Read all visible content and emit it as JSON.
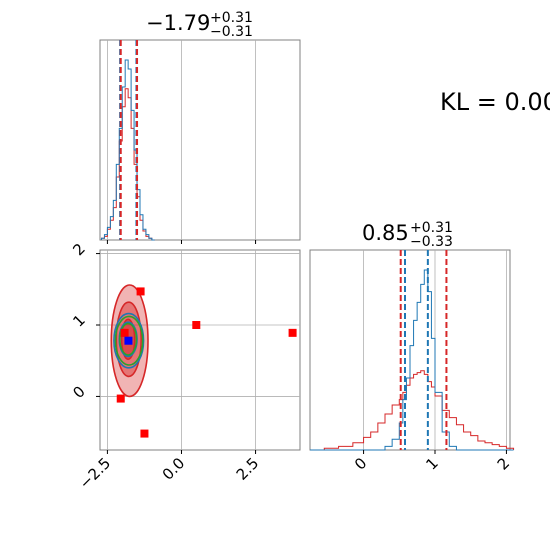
{
  "chart_data": {
    "type": "corner",
    "kl_text": "KL = 0.00",
    "params": [
      {
        "median": "−1.79",
        "plus": "+0.31",
        "minus": "−0.31",
        "axis_range": [
          -2.75,
          4.0
        ],
        "ticks": [
          -2.5,
          0.0,
          2.5
        ],
        "tick_labels": [
          "−2.5",
          "0.0",
          "2.5"
        ],
        "quantile_lines": {
          "red": [
            -2.05,
            -1.5
          ],
          "blue": [
            -2.07,
            -1.52
          ]
        }
      },
      {
        "median": "0.85",
        "plus": "+0.31",
        "minus": "−0.33",
        "axis_range": [
          -0.75,
          2.05
        ],
        "ticks": [
          0,
          1,
          2
        ],
        "tick_labels": [
          "0",
          "1",
          "2"
        ],
        "quantile_lines": {
          "red": [
            0.52,
            1.16
          ],
          "blue": [
            0.58,
            0.9
          ]
        }
      }
    ],
    "hist1d_param1": {
      "x": [
        -2.7,
        -2.6,
        -2.5,
        -2.4,
        -2.3,
        -2.2,
        -2.1,
        -2.0,
        -1.9,
        -1.8,
        -1.7,
        -1.6,
        -1.5,
        -1.4,
        -1.3,
        -1.2,
        -1.1,
        -1.0
      ],
      "blue": [
        0.01,
        0.03,
        0.07,
        0.13,
        0.22,
        0.42,
        0.62,
        0.85,
        1.0,
        0.95,
        0.72,
        0.5,
        0.28,
        0.14,
        0.06,
        0.03,
        0.01,
        0.0
      ],
      "red": [
        0.01,
        0.02,
        0.06,
        0.11,
        0.18,
        0.35,
        0.55,
        0.74,
        0.84,
        0.79,
        0.62,
        0.42,
        0.24,
        0.11,
        0.05,
        0.02,
        0.01,
        0.0
      ]
    },
    "hist1d_param2": {
      "x": [
        -0.75,
        -0.55,
        -0.35,
        -0.15,
        0.0,
        0.1,
        0.2,
        0.3,
        0.4,
        0.5,
        0.55,
        0.6,
        0.65,
        0.7,
        0.75,
        0.8,
        0.85,
        0.9,
        0.95,
        1.0,
        1.1,
        1.2,
        1.3,
        1.4,
        1.5,
        1.6,
        1.7,
        1.8,
        1.9,
        2.0
      ],
      "blue": [
        0.0,
        0.0,
        0.0,
        0.0,
        0.0,
        0.0,
        0.0,
        0.02,
        0.06,
        0.15,
        0.28,
        0.4,
        0.58,
        0.72,
        0.82,
        0.92,
        1.0,
        0.88,
        0.62,
        0.32,
        0.1,
        0.02,
        0.0,
        0.0,
        0.0,
        0.0,
        0.0,
        0.0,
        0.0,
        0.0
      ],
      "red": [
        0.0,
        0.01,
        0.02,
        0.04,
        0.07,
        0.1,
        0.15,
        0.2,
        0.25,
        0.28,
        0.32,
        0.36,
        0.4,
        0.42,
        0.43,
        0.44,
        0.42,
        0.38,
        0.35,
        0.3,
        0.22,
        0.18,
        0.14,
        0.1,
        0.08,
        0.05,
        0.04,
        0.03,
        0.02,
        0.01
      ]
    },
    "contours_red": [
      {
        "cx": -1.75,
        "cy": 0.78,
        "rx": 0.62,
        "ry": 0.78
      },
      {
        "cx": -1.78,
        "cy": 0.8,
        "rx": 0.42,
        "ry": 0.52
      },
      {
        "cx": -1.8,
        "cy": 0.8,
        "rx": 0.22,
        "ry": 0.28
      }
    ],
    "contours_blue": [
      {
        "cx": -1.78,
        "cy": 0.78,
        "rx": 0.5,
        "ry": 0.38
      },
      {
        "cx": -1.8,
        "cy": 0.8,
        "rx": 0.3,
        "ry": 0.24
      }
    ],
    "contours_green": [
      {
        "cx": -1.77,
        "cy": 0.78,
        "rx": 0.46,
        "ry": 0.34
      },
      {
        "cx": -1.8,
        "cy": 0.8,
        "rx": 0.28,
        "ry": 0.22
      }
    ],
    "truth_point": {
      "x": -1.79,
      "y": 0.78
    },
    "red_markers": [
      {
        "x": -1.38,
        "y": 1.47
      },
      {
        "x": 0.5,
        "y": 1.0
      },
      {
        "x": 3.75,
        "y": 0.89
      },
      {
        "x": -1.92,
        "y": 0.89
      },
      {
        "x": -2.05,
        "y": -0.03
      },
      {
        "x": -1.25,
        "y": -0.52
      }
    ],
    "colors": {
      "red": "#d62728",
      "blue": "#1f77b4",
      "green": "#2ca02c",
      "truth": "#0000ff",
      "marker": "#ff0000",
      "grid": "#b0b0b0"
    }
  }
}
